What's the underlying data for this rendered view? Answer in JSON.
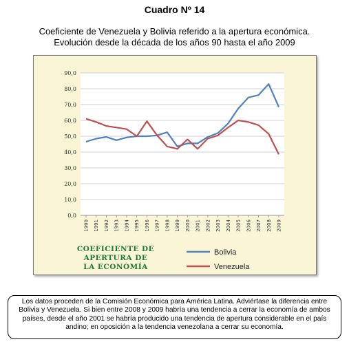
{
  "heading": "Cuadro Nº 14",
  "subtitle_line1": "Coeficiente de Venezuela y Bolivia referido a la apertura económica.",
  "subtitle_line2": "Evolución desde la década de los años 90 hasta el año 2009",
  "chart_data": {
    "type": "line",
    "caption_lines": [
      "COEFICIENTE DE",
      "APERTURA DE",
      "LA ECONOMÍA"
    ],
    "x": [
      "1990",
      "1991",
      "1992",
      "1993",
      "1994",
      "1995",
      "1996",
      "1997",
      "1998",
      "1999",
      "2000",
      "2001",
      "2002",
      "2003",
      "2004",
      "2005",
      "2006",
      "2007",
      "2008",
      "2009"
    ],
    "ylim": [
      0,
      90
    ],
    "yticks": [
      "0,0",
      "10,0",
      "20,0",
      "30,0",
      "40,0",
      "50,0",
      "60,0",
      "70,0",
      "80,0",
      "90,0"
    ],
    "grid": "horizontal",
    "legend_position": "bottom-right",
    "series": [
      {
        "name": "Bolivia",
        "color": "#4f81bd",
        "values": [
          46.5,
          48.5,
          49.5,
          47.5,
          49.2,
          50.0,
          50.0,
          50.5,
          52.5,
          43.5,
          45.5,
          45.5,
          49.5,
          52.0,
          58.0,
          67.5,
          74.5,
          76.0,
          83.0,
          68.5
        ]
      },
      {
        "name": "Venezuela",
        "color": "#c0504d",
        "values": [
          61.0,
          59.0,
          56.5,
          55.5,
          54.5,
          50.0,
          59.5,
          50.5,
          43.5,
          42.0,
          48.0,
          42.0,
          48.5,
          50.5,
          55.5,
          60.0,
          59.0,
          57.0,
          51.5,
          38.5
        ]
      }
    ]
  },
  "note": "Los datos proceden de la Comisión Económica para América Latina. Adviértase la diferencia entre Bolivia y Venezuela. Si bien entre 2008 y 2009 habría una tendencia a cerrar la economía de ambos países, desde el año 2001 se habría producido una tendencia de apertura considerable en el país andino; en oposición a la tendencia venezolana a cerrar su economía."
}
